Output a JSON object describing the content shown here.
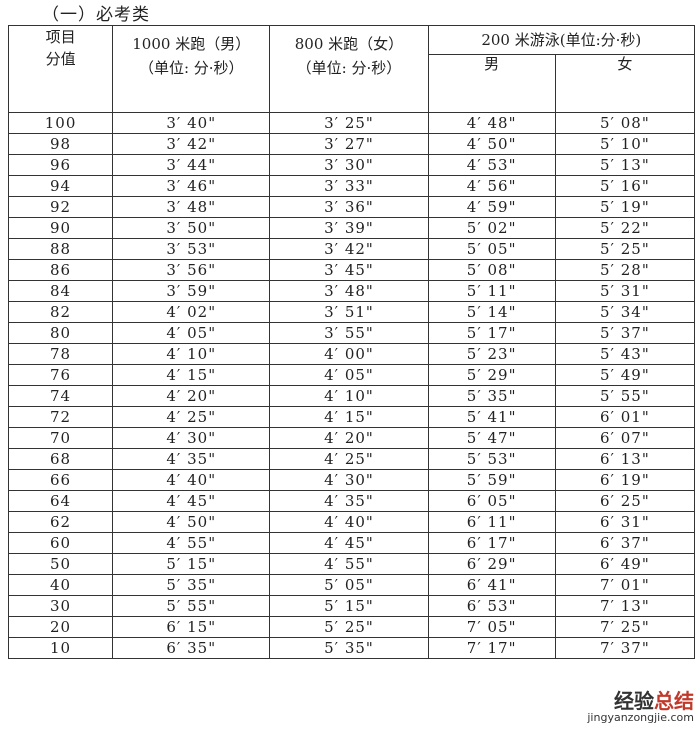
{
  "title": "（一）必考类",
  "header": {
    "item": "项目",
    "score": "分值",
    "run1000": "1000 米跑（男）",
    "run800": "800 米跑（女）",
    "unit": "（单位: 分·秒）",
    "swim": "200 米游泳(单位:分·秒)",
    "male": "男",
    "female": "女"
  },
  "rows": [
    [
      "100",
      "3′ 40\"",
      "3′ 25\"",
      "4′ 48\"",
      "5′ 08\""
    ],
    [
      "98",
      "3′ 42\"",
      "3′ 27\"",
      "4′ 50\"",
      "5′ 10\""
    ],
    [
      "96",
      "3′ 44\"",
      "3′ 30\"",
      "4′ 53\"",
      "5′ 13\""
    ],
    [
      "94",
      "3′ 46\"",
      "3′ 33\"",
      "4′ 56\"",
      "5′ 16\""
    ],
    [
      "92",
      "3′ 48\"",
      "3′ 36\"",
      "4′ 59\"",
      "5′ 19\""
    ],
    [
      "90",
      "3′ 50\"",
      "3′ 39\"",
      "5′ 02\"",
      "5′ 22\""
    ],
    [
      "88",
      "3′ 53\"",
      "3′ 42\"",
      "5′ 05\"",
      "5′ 25\""
    ],
    [
      "86",
      "3′ 56\"",
      "3′ 45\"",
      "5′ 08\"",
      "5′ 28\""
    ],
    [
      "84",
      "3′ 59\"",
      "3′ 48\"",
      "5′ 11\"",
      "5′ 31\""
    ],
    [
      "82",
      "4′ 02\"",
      "3′ 51\"",
      "5′ 14\"",
      "5′ 34\""
    ],
    [
      "80",
      "4′ 05\"",
      "3′ 55\"",
      "5′ 17\"",
      "5′ 37\""
    ],
    [
      "78",
      "4′ 10\"",
      "4′ 00\"",
      "5′ 23\"",
      "5′ 43\""
    ],
    [
      "76",
      "4′ 15\"",
      "4′ 05\"",
      "5′ 29\"",
      "5′ 49\""
    ],
    [
      "74",
      "4′ 20\"",
      "4′ 10\"",
      "5′ 35\"",
      "5′ 55\""
    ],
    [
      "72",
      "4′ 25\"",
      "4′ 15\"",
      "5′ 41\"",
      "6′ 01\""
    ],
    [
      "70",
      "4′ 30\"",
      "4′ 20\"",
      "5′ 47\"",
      "6′ 07\""
    ],
    [
      "68",
      "4′ 35\"",
      "4′ 25\"",
      "5′ 53\"",
      "6′ 13\""
    ],
    [
      "66",
      "4′ 40\"",
      "4′ 30\"",
      "5′ 59\"",
      "6′ 19\""
    ],
    [
      "64",
      "4′ 45\"",
      "4′ 35\"",
      "6′ 05\"",
      "6′ 25\""
    ],
    [
      "62",
      "4′ 50\"",
      "4′ 40\"",
      "6′ 11\"",
      "6′ 31\""
    ],
    [
      "60",
      "4′ 55\"",
      "4′ 45\"",
      "6′ 17\"",
      "6′ 37\""
    ],
    [
      "50",
      "5′ 15\"",
      "4′ 55\"",
      "6′ 29\"",
      "6′ 49\""
    ],
    [
      "40",
      "5′ 35\"",
      "5′ 05\"",
      "6′ 41\"",
      "7′ 01\""
    ],
    [
      "30",
      "5′ 55\"",
      "5′ 15\"",
      "6′ 53\"",
      "7′ 13\""
    ],
    [
      "20",
      "6′ 15\"",
      "5′ 25\"",
      "7′ 05\"",
      "7′ 25\""
    ],
    [
      "10",
      "6′ 35\"",
      "5′ 35\"",
      "7′ 17\"",
      "7′ 37\""
    ]
  ],
  "watermark": {
    "text1": "经验",
    "text2": "总结",
    "url": "jingyanzongjie.com"
  }
}
